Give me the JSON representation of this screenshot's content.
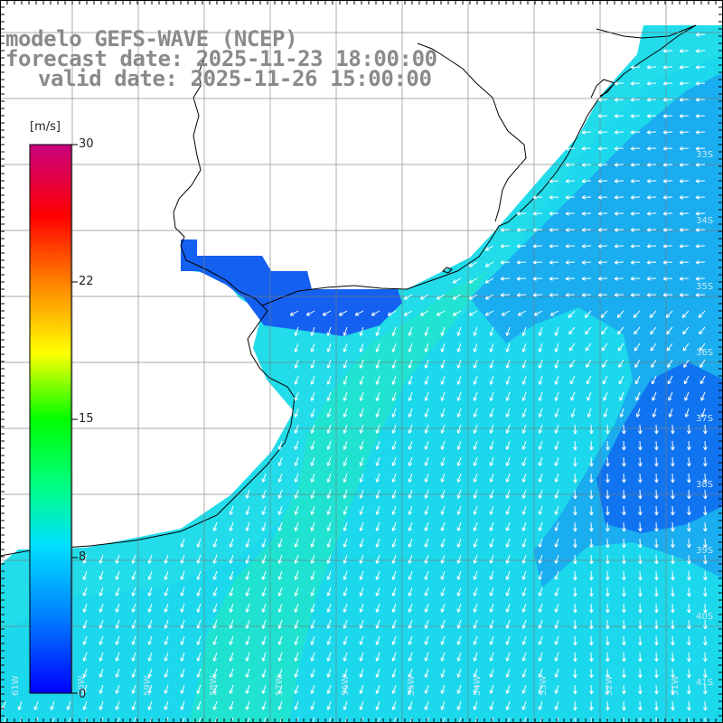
{
  "header": {
    "line1": "modelo GEFS-WAVE (NCEP)",
    "line2": "forecast date: 2025-11-23 18:00:00",
    "line3": "valid date: 2025-11-26 15:00:00"
  },
  "colorbar": {
    "unit": "[m/s]",
    "ticks": [
      "30",
      "22",
      "15",
      "8",
      "0"
    ],
    "stops": [
      "#0000ff",
      "#0080ff",
      "#00e0ff",
      "#00ff80",
      "#00ff00",
      "#ffff00",
      "#ff8000",
      "#ff0000",
      "#c80080"
    ]
  },
  "map": {
    "lat_labels": [
      "33S",
      "34S",
      "35S",
      "36S",
      "37S",
      "38S",
      "39S",
      "40S",
      "41S"
    ],
    "lon_labels": [
      "61W",
      "60W",
      "59W",
      "58W",
      "57W",
      "56W",
      "55W",
      "54W",
      "53W",
      "52W",
      "51W"
    ],
    "field": "wind speed and direction",
    "arrow_color": "#ffffff"
  }
}
